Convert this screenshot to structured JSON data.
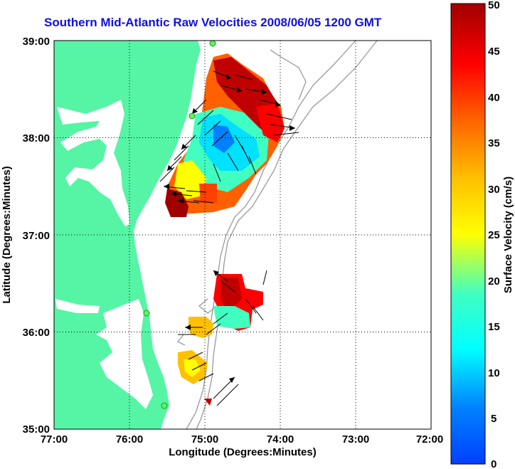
{
  "title": "Southern Mid-Atlantic Raw Velocities 2008/06/05 1200 GMT",
  "x_axis": {
    "label": "Longitude (Degrees:Minutes)",
    "ticks": [
      "77:00",
      "76:00",
      "75:00",
      "74:00",
      "73:00",
      "72:00"
    ]
  },
  "y_axis": {
    "label": "Latitude (Degrees:Minutes)",
    "ticks": [
      "39:00",
      "38:00",
      "37:00",
      "36:00",
      "35:00"
    ]
  },
  "colorbar": {
    "label": "Surface Velocity (cm/s)",
    "ticks": [
      "50",
      "45",
      "40",
      "35",
      "30",
      "25",
      "20",
      "15",
      "10",
      "5",
      "0"
    ],
    "min": 0,
    "max": 50,
    "colormap": "jet"
  },
  "map_extent": {
    "lon_min": -77,
    "lon_max": -72,
    "lat_min": 35,
    "lat_max": 39
  },
  "colors": {
    "land": "#55f5a5",
    "title": "#1010e0",
    "bathymetry_contour": "#999999",
    "grid": "#000000"
  },
  "chart_data": {
    "type": "vector field",
    "quantity": "surface current velocity",
    "units": "cm/s",
    "regions": [
      {
        "lon_range": [
          -75.7,
          -74.0
        ],
        "lat_range": [
          37.2,
          38.9
        ],
        "speed_range_cms": [
          5,
          50
        ]
      },
      {
        "lon_range": [
          -75.2,
          -74.2
        ],
        "lat_range": [
          36.0,
          36.6
        ],
        "speed_range_cms": [
          15,
          48
        ]
      },
      {
        "lon_range": [
          -75.3,
          -74.9
        ],
        "lat_range": [
          35.4,
          35.8
        ],
        "speed_range_cms": [
          25,
          40
        ]
      }
    ]
  }
}
